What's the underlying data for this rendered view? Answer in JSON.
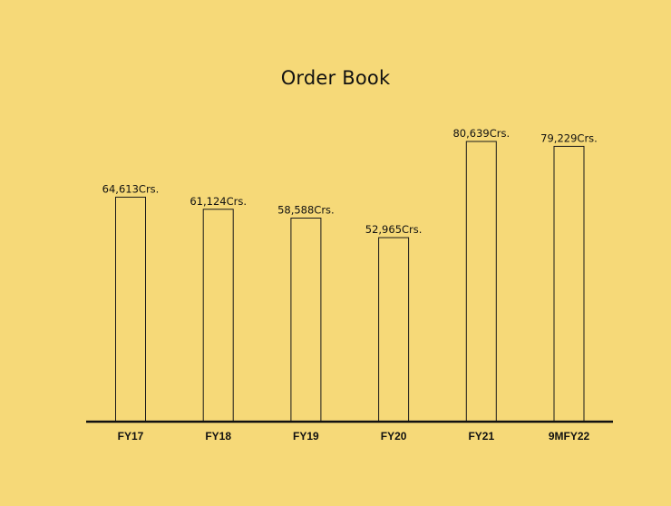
{
  "chart_data": {
    "type": "bar",
    "title": "Order Book",
    "xlabel": "",
    "ylabel": "",
    "categories": [
      "FY17",
      "FY18",
      "FY19",
      "FY20",
      "FY21",
      "9MFY22"
    ],
    "values": [
      64613,
      61124,
      58588,
      52965,
      80639,
      79229
    ],
    "data_labels": [
      "64,613Crs.",
      "61,124Crs.",
      "58,588Crs.",
      "52,965Crs.",
      "80,639Crs.",
      "79,229Crs."
    ],
    "ylim": [
      0,
      80639
    ],
    "grid": false,
    "legend": "none",
    "colors": {
      "background": "#f6d978",
      "bar_fill": "transparent",
      "bar_stroke": "#1a1a1a",
      "text": "#111111"
    }
  }
}
